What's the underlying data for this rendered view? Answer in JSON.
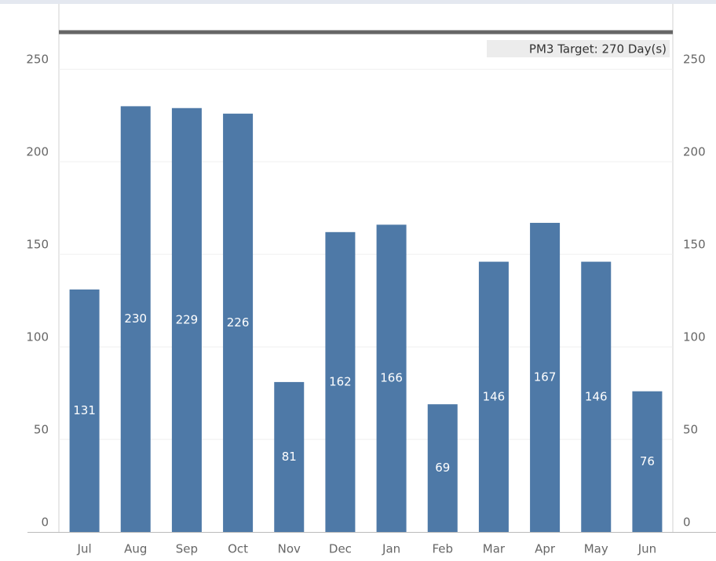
{
  "chart_data": {
    "type": "bar",
    "categories": [
      "Jul",
      "Aug",
      "Sep",
      "Oct",
      "Nov",
      "Dec",
      "Jan",
      "Feb",
      "Mar",
      "Apr",
      "May",
      "Jun"
    ],
    "values": [
      131,
      230,
      229,
      226,
      81,
      162,
      166,
      69,
      146,
      167,
      146,
      76
    ],
    "color": "#4e79a7",
    "ylim": [
      0,
      284
    ],
    "yticks": [
      0,
      50,
      100,
      150,
      200,
      250
    ],
    "grid": true,
    "reference_line": {
      "value": 270,
      "label": "PM3 Target: 270 Day(s)"
    }
  }
}
